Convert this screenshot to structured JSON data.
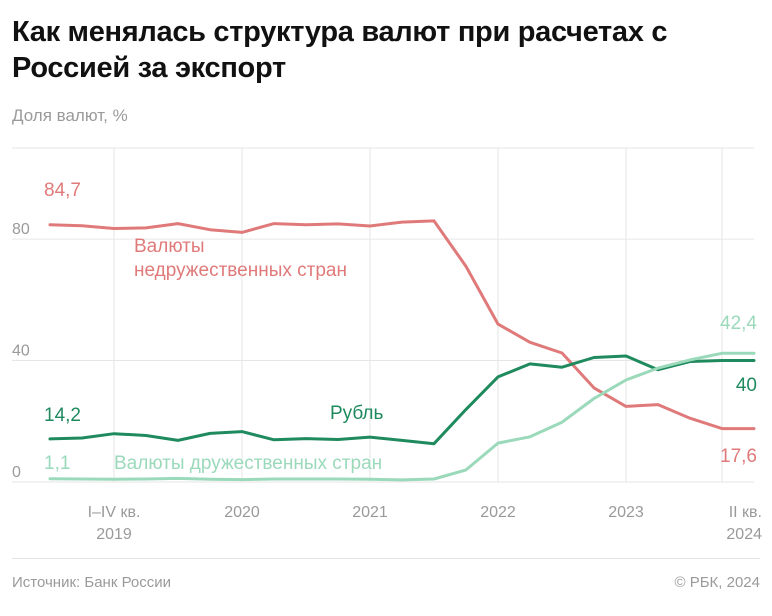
{
  "title": "Как менялась структура валют при расчетах с Россией за экспорт",
  "subtitle": "Доля валют, %",
  "source": "Источник: Банк России",
  "copyright": "© РБК, 2024",
  "chart_data": {
    "type": "line",
    "ylim": [
      0,
      110
    ],
    "yticks": [
      "0",
      "40",
      "80"
    ],
    "ytick_values": [
      0,
      40,
      80
    ],
    "x_ticks": [
      {
        "label1": "I–IV кв.",
        "label2": "2019",
        "x": 2
      },
      {
        "label1": "2020",
        "label2": "",
        "x": 6
      },
      {
        "label1": "2021",
        "label2": "",
        "x": 10
      },
      {
        "label1": "2022",
        "label2": "",
        "x": 14
      },
      {
        "label1": "2023",
        "label2": "",
        "x": 18
      },
      {
        "label1": "II кв.",
        "label2": "2024",
        "x": 21
      }
    ],
    "grid": true,
    "series": [
      {
        "name": "Валюты недружественных стран",
        "label_line1": "Валюты",
        "label_line2": "недружественных стран",
        "color": "#e07a7a",
        "x": [
          0,
          1,
          2,
          3,
          4,
          5,
          6,
          7,
          8,
          9,
          10,
          11,
          12,
          13,
          14,
          15,
          16,
          17,
          18,
          19,
          20,
          21,
          22
        ],
        "values": [
          84.7,
          84.4,
          83.5,
          83.7,
          85.1,
          83.1,
          82.2,
          85.1,
          84.7,
          85.0,
          84.3,
          85.6,
          86.0,
          71.0,
          52.0,
          46.0,
          42.5,
          31.0,
          24.9,
          25.5,
          21.0,
          17.6,
          17.6
        ],
        "start_label": "84,7",
        "end_label": "17,6"
      },
      {
        "name": "Рубль",
        "label_line1": "Рубль",
        "color": "#1f8a5e",
        "x": [
          0,
          1,
          2,
          3,
          4,
          5,
          6,
          7,
          8,
          9,
          10,
          11,
          12,
          13,
          14,
          15,
          16,
          17,
          18,
          19,
          20,
          21,
          22
        ],
        "values": [
          14.2,
          14.5,
          15.9,
          15.3,
          13.7,
          16.0,
          16.6,
          13.9,
          14.3,
          14.0,
          14.8,
          13.7,
          12.6,
          23.9,
          34.6,
          38.9,
          37.8,
          41.0,
          41.5,
          37.0,
          39.7,
          40.0,
          40.0
        ],
        "start_label": "14,2",
        "end_label": "40"
      },
      {
        "name": "Валюты дружественных стран",
        "label_line1": "Валюты дружественных стран",
        "color": "#9bd9bb",
        "x": [
          0,
          1,
          2,
          3,
          4,
          5,
          6,
          7,
          8,
          9,
          10,
          11,
          12,
          13,
          14,
          15,
          16,
          17,
          18,
          19,
          20,
          21,
          22
        ],
        "values": [
          1.1,
          1.0,
          0.9,
          1.0,
          1.2,
          0.9,
          0.8,
          1.0,
          1.0,
          1.0,
          0.9,
          0.7,
          1.0,
          4.0,
          12.8,
          14.9,
          19.7,
          27.5,
          33.6,
          37.5,
          40.2,
          42.4,
          42.4
        ],
        "start_label": "1,1",
        "end_label": "42,4"
      }
    ]
  }
}
